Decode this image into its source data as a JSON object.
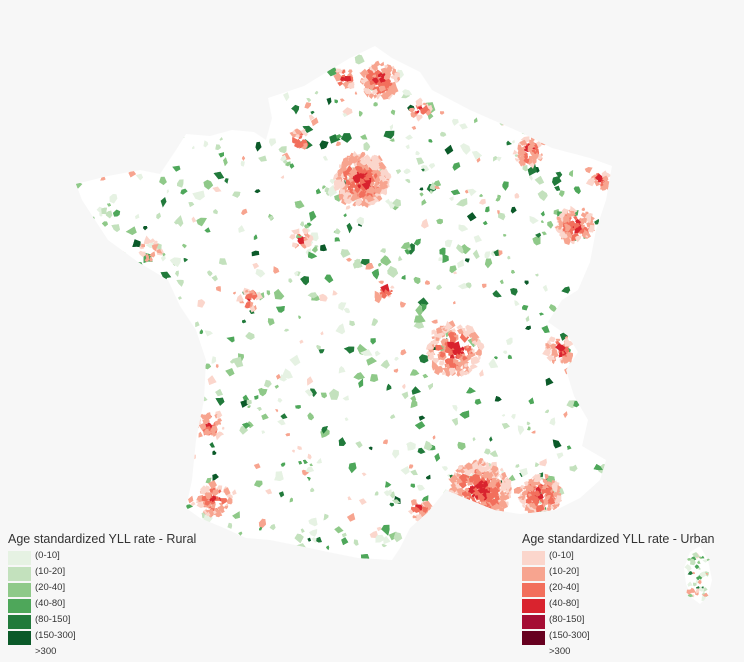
{
  "legends": {
    "rural": {
      "title": "Age standardized YLL rate - Rural",
      "items": [
        {
          "label": "(0-10]",
          "color": "#e6f2e3"
        },
        {
          "label": "(10-20]",
          "color": "#c3e1bd"
        },
        {
          "label": "(20-40]",
          "color": "#8fc989"
        },
        {
          "label": "(40-80]",
          "color": "#4ea75a"
        },
        {
          "label": "(80-150]",
          "color": "#217a3b"
        },
        {
          "label": "(150-300]",
          "color": "#0b5a29"
        },
        {
          "label": ">300",
          "color": null
        }
      ]
    },
    "urban": {
      "title": "Age standardized YLL rate - Urban",
      "items": [
        {
          "label": "(0-10]",
          "color": "#fbd6cc"
        },
        {
          "label": "(10-20]",
          "color": "#f7a48f"
        },
        {
          "label": "(20-40]",
          "color": "#f26f5c"
        },
        {
          "label": "(40-80]",
          "color": "#d9232e"
        },
        {
          "label": "(80-150]",
          "color": "#a50d34"
        },
        {
          "label": "(150-300]",
          "color": "#67001f"
        },
        {
          "label": ">300",
          "color": null
        }
      ]
    }
  },
  "colors": {
    "background": "#f7f7f7",
    "land": "#ffffff"
  }
}
